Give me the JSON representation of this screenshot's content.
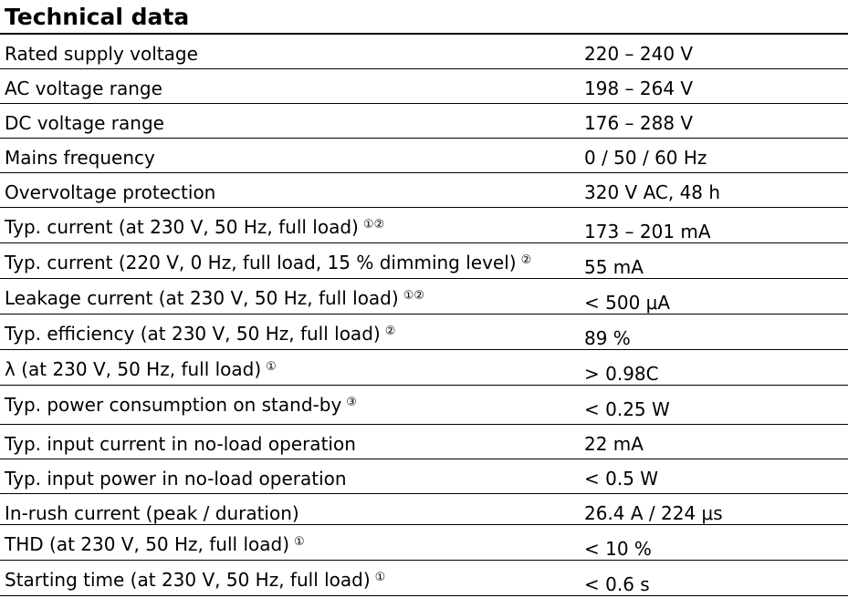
{
  "document": {
    "title": "Technical data",
    "rows": [
      {
        "label": "Rated supply voltage",
        "note": "",
        "value": "220 – 240 V"
      },
      {
        "label": "AC voltage range",
        "note": "",
        "value": "198 – 264 V"
      },
      {
        "label": "DC voltage range",
        "note": "",
        "value": "176 – 288 V"
      },
      {
        "label": "Mains frequency",
        "note": "",
        "value": "0 / 50 / 60 Hz"
      },
      {
        "label": "Overvoltage protection",
        "note": "",
        "value": "320 V AC, 48 h"
      },
      {
        "label": "Typ. current (at 230 V, 50 Hz, full load)",
        "note": "①②",
        "value": "173 – 201 mA"
      },
      {
        "label": "Typ. current (220 V, 0 Hz, full load, 15 % dimming level)",
        "note": "②",
        "value": "55 mA"
      },
      {
        "label": "Leakage current (at 230 V, 50 Hz, full load)",
        "note": "①②",
        "value": "< 500 μA"
      },
      {
        "label": "Typ. efficiency (at 230 V, 50 Hz, full load)",
        "note": "②",
        "value": "89 %"
      },
      {
        "label": "λ (at 230 V, 50 Hz, full load)",
        "note": "①",
        "value": "> 0.98C"
      },
      {
        "label": "Typ. power consumption on stand-by",
        "note": "③",
        "value": "< 0.25 W"
      },
      {
        "label": "Typ. input current in no-load operation",
        "note": "",
        "value": "22 mA"
      },
      {
        "label": "Typ. input power in no-load operation",
        "note": "",
        "value": "< 0.5 W"
      },
      {
        "label": "In-rush current (peak / duration)",
        "note": "",
        "value": "26.4 A / 224 μs"
      },
      {
        "label": "THD (at 230 V, 50 Hz, full load)",
        "note": "①",
        "value": "< 10 %"
      },
      {
        "label": "Starting time (at 230 V, 50 Hz, full load)",
        "note": "①",
        "value": "< 0.6 s"
      }
    ]
  }
}
